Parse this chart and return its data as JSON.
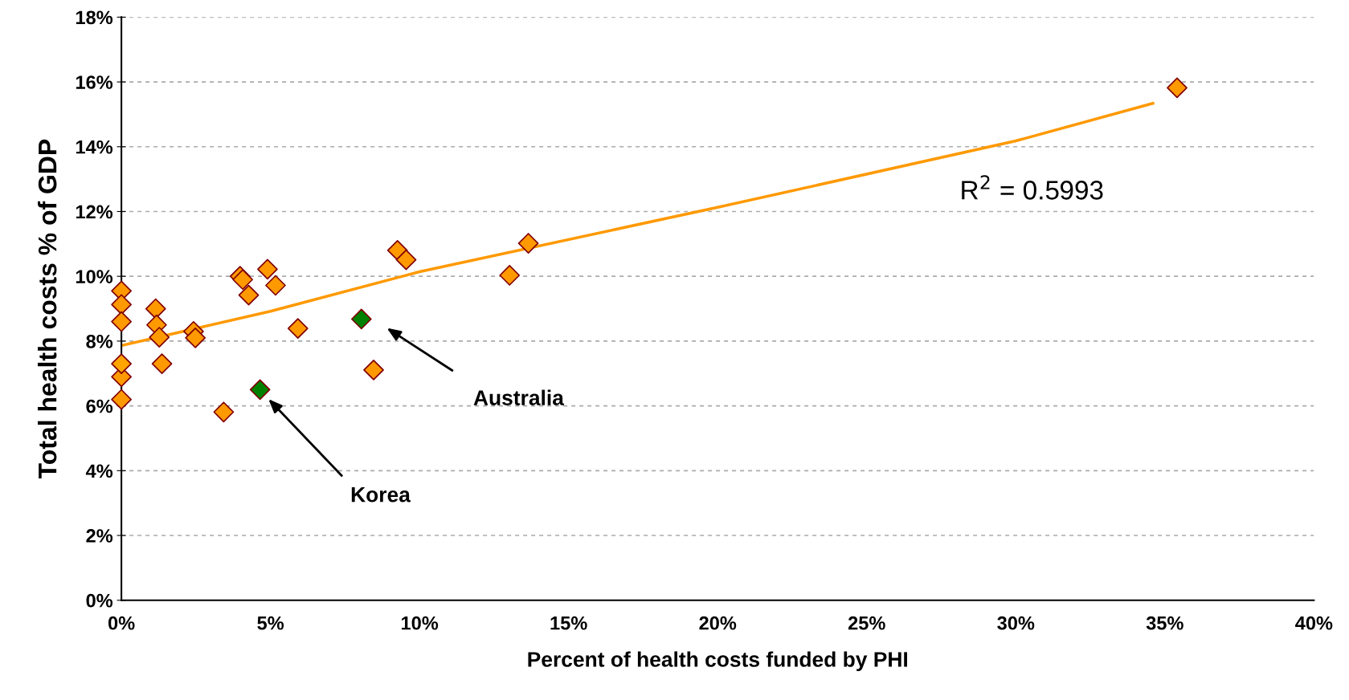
{
  "chart_data": {
    "type": "scatter",
    "xlabel": "Percent of health costs funded by PHI",
    "ylabel": "Total health costs % of GDP",
    "xlim": [
      0,
      40
    ],
    "ylim": [
      0,
      18
    ],
    "xticks": [
      {
        "value": 0,
        "label": "0%"
      },
      {
        "value": 5,
        "label": "5%"
      },
      {
        "value": 10,
        "label": "10%"
      },
      {
        "value": 15,
        "label": "15%"
      },
      {
        "value": 20,
        "label": "20%"
      },
      {
        "value": 25,
        "label": "25%"
      },
      {
        "value": 30,
        "label": "30%"
      },
      {
        "value": 35,
        "label": "35%"
      },
      {
        "value": 40,
        "label": "40%"
      }
    ],
    "yticks": [
      {
        "value": 0,
        "label": "0%"
      },
      {
        "value": 2,
        "label": "2%"
      },
      {
        "value": 4,
        "label": "4%"
      },
      {
        "value": 6,
        "label": "6%"
      },
      {
        "value": 8,
        "label": "8%"
      },
      {
        "value": 10,
        "label": "10%"
      },
      {
        "value": 12,
        "label": "12%"
      },
      {
        "value": 14,
        "label": "14%"
      },
      {
        "value": 16,
        "label": "16%"
      },
      {
        "value": 18,
        "label": "18%"
      }
    ],
    "grid": "y",
    "marker": "diamond",
    "series": [
      {
        "type": "line",
        "marker": "none",
        "color": "#ff9900",
        "x": [
          0,
          5,
          10,
          20,
          30,
          34.6
        ],
        "values": [
          7.86,
          8.92,
          10.14,
          12.13,
          14.18,
          15.34
        ]
      },
      {
        "color": "#ff9900",
        "x": [
          0,
          0,
          0,
          0,
          0,
          1.15,
          1.18,
          1.27,
          1.36,
          2.42,
          2.48,
          3.43,
          3.98,
          4.07,
          4.27,
          4.9,
          5.17,
          5.92,
          8.46,
          9.26,
          9.55,
          13.02,
          13.65,
          35.41
        ],
        "values": [
          9.55,
          9.13,
          8.6,
          6.9,
          6.2,
          9.0,
          8.5,
          8.12,
          7.3,
          8.3,
          8.1,
          5.81,
          10.0,
          9.9,
          9.42,
          10.22,
          9.72,
          8.39,
          7.11,
          10.8,
          10.51,
          10.03,
          11.02,
          15.82
        ]
      },
      {
        "color": "#ffa500",
        "x": [
          0
        ],
        "values": [
          7.3
        ]
      },
      {
        "color": "#008000",
        "x": [
          4.65,
          8.05
        ],
        "values": [
          6.5,
          8.68
        ]
      }
    ],
    "annotations": [
      "Australia",
      "Korea",
      "R$^{2}$ = 0.5993"
    ]
  }
}
